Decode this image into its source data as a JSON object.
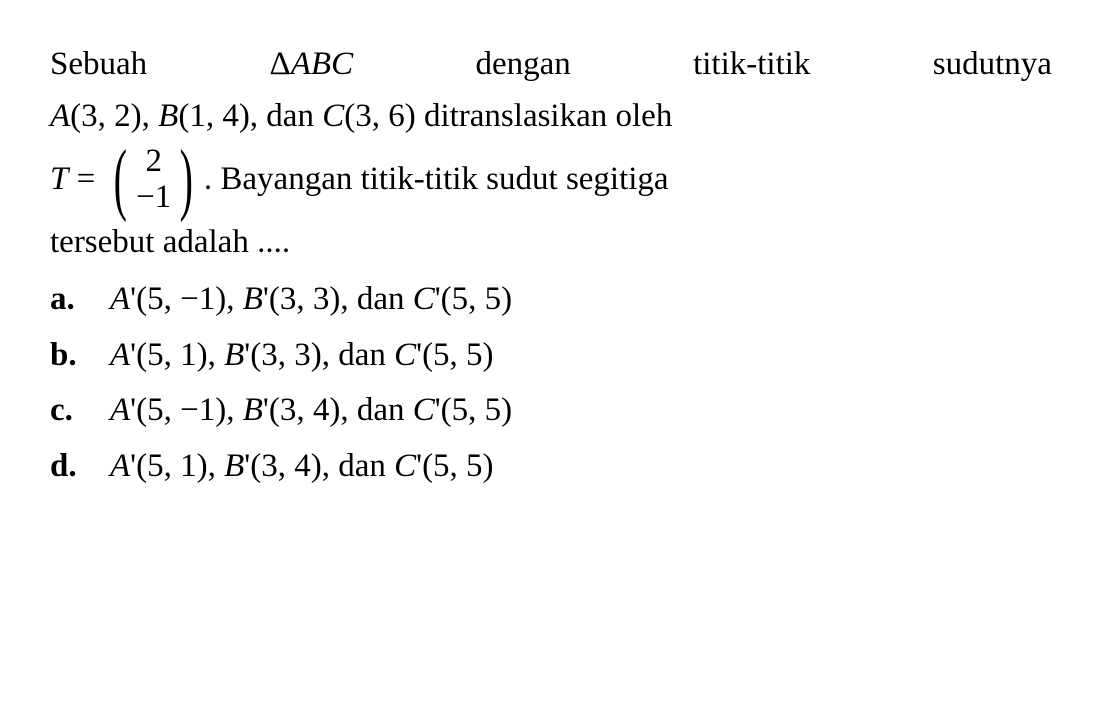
{
  "question": {
    "line1_parts": [
      "Sebuah",
      "Δ",
      "ABC",
      "dengan",
      "titik-titik",
      "sudutnya"
    ],
    "line2": "A(3, 2), B(1, 4), dan C(3, 6) ditranslasikan oleh",
    "matrix_prefix": "T = ",
    "matrix_top": "2",
    "matrix_bottom": "−1",
    "matrix_suffix": ". Bayangan titik-titik sudut segitiga",
    "line4": "tersebut adalah ....",
    "font_size": 33,
    "text_color": "#000000",
    "background_color": "#ffffff"
  },
  "options": [
    {
      "label": "a.",
      "text": "A'(5, −1), B'(3, 3), dan C'(5, 5)"
    },
    {
      "label": "b.",
      "text": "A'(5, 1), B'(3, 3), dan C'(5, 5)"
    },
    {
      "label": "c.",
      "text": "A'(5, −1), B'(3, 4), dan C'(5, 5)"
    },
    {
      "label": "d.",
      "text": "A'(5, 1), B'(3, 4), dan C'(5, 5)"
    }
  ]
}
